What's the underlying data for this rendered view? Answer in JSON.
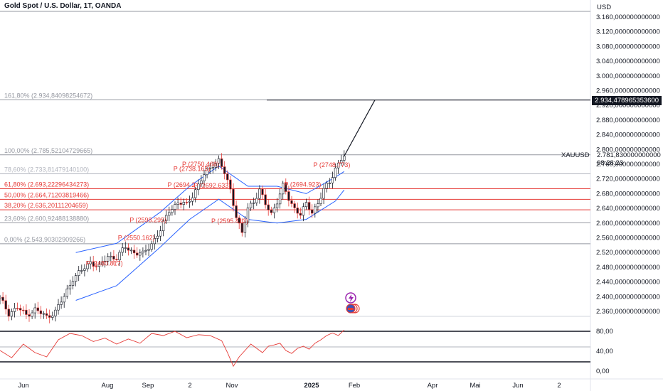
{
  "header": {
    "title": "Gold Spot / U.S. Dollar, 1T, OANDA",
    "currency": "USD"
  },
  "price_tags": {
    "target_price": "2.934,478965353600",
    "symbol": "XAUUSD",
    "last_price": "2.781,830000000000",
    "countdown": "08:28:23"
  },
  "fib_levels": [
    {
      "label": "161,80% (2.934,84098254672)",
      "value": 2934.84,
      "color": "#9598a1"
    },
    {
      "label": "100,00% (2.785,52104729665)",
      "value": 2785.52,
      "color": "#9598a1"
    },
    {
      "label": "78,60% (2.733,81479140100)",
      "value": 2733.81,
      "color": "#b2b5be"
    },
    {
      "label": "61,80% (2.693,22296434273)",
      "value": 2693.22,
      "color": "#e53935"
    },
    {
      "label": "50,00% (2.664,71203819466)",
      "value": 2664.71,
      "color": "#e53935"
    },
    {
      "label": "38,20% (2.636,20111204659)",
      "value": 2636.2,
      "color": "#e53935"
    },
    {
      "label": "23,60% (2.600,92488138880)",
      "value": 2600.92,
      "color": "#9598a1"
    },
    {
      "label": "0,00% (2.543,90302909266)",
      "value": 2543.9,
      "color": "#9598a1"
    }
  ],
  "pivot_labels": [
    {
      "text": "P (2750.468)",
      "x": 60,
      "y": 2750.5
    },
    {
      "text": "P (2738.165)",
      "x": 57,
      "y": 2738.2
    },
    {
      "text": "P (2748.773)",
      "x": 105,
      "y": 2748.8
    },
    {
      "text": "P (2694.2",
      "x": 55,
      "y": 2694.2
    },
    {
      "text": "P (2692.633)",
      "x": 64,
      "y": 2692.6
    },
    {
      "text": "P (2694.923)",
      "x": 95,
      "y": 2694.9
    },
    {
      "text": "P (2598.295)",
      "x": 42,
      "y": 2598.3
    },
    {
      "text": "P (2595.413)",
      "x": 70,
      "y": 2595.4
    },
    {
      "text": "P (2550.162)",
      "x": 38,
      "y": 2550.2
    },
    {
      "text": "P (2480.817)",
      "x": 27,
      "y": 2480.8
    }
  ],
  "axes": {
    "price_ticks": [
      "3.160,000000000000",
      "3.120,000000000000",
      "3.080,000000000000",
      "3.040,000000000000",
      "3.000,000000000000",
      "2.960,000000000000",
      "2.920,000000000000",
      "2.880,000000000000",
      "2.840,000000000000",
      "2.800,000000000000",
      "2.760,000000000000",
      "2.720,000000000000",
      "2.680,000000000000",
      "2.640,000000000000",
      "2.600,000000000000",
      "2.560,000000000000",
      "2.520,000000000000",
      "2.480,000000000000",
      "2.440,000000000000",
      "2.400,000000000000",
      "2.360,000000000000"
    ],
    "rsi_ticks": [
      "80,00",
      "40,00",
      "0,00"
    ],
    "time_ticks": [
      "Jun",
      "Aug",
      "Sep",
      "2",
      "Nov",
      "2025",
      "Feb",
      "Apr",
      "Mai",
      "Jun",
      "2"
    ]
  },
  "chart_data": {
    "type": "candlestick",
    "title": "Gold Spot / U.S. Dollar, 1T, OANDA",
    "y_unit": "USD",
    "ylim": [
      2340,
      3180
    ],
    "x_range_days": [
      0,
      220
    ],
    "x_ticks": [
      {
        "label": "Jun",
        "day": 0
      },
      {
        "label": "Aug",
        "day": 35
      },
      {
        "label": "Sep",
        "day": 48
      },
      {
        "label": "2",
        "day": 62
      },
      {
        "label": "Nov",
        "day": 75
      },
      {
        "label": "2025",
        "day": 101
      },
      {
        "label": "Feb",
        "day": 116
      },
      {
        "label": "Apr",
        "day": 142
      },
      {
        "label": "Mai",
        "day": 157
      },
      {
        "label": "Jun",
        "day": 170
      },
      {
        "label": "2",
        "day": 183
      }
    ],
    "price_path": [
      [
        0,
        2395
      ],
      [
        3,
        2355
      ],
      [
        6,
        2370
      ],
      [
        9,
        2350
      ],
      [
        12,
        2365
      ],
      [
        16,
        2345
      ],
      [
        19,
        2360
      ],
      [
        22,
        2400
      ],
      [
        25,
        2450
      ],
      [
        28,
        2470
      ],
      [
        31,
        2495
      ],
      [
        34,
        2480
      ],
      [
        37,
        2510
      ],
      [
        40,
        2505
      ],
      [
        43,
        2535
      ],
      [
        46,
        2520
      ],
      [
        49,
        2515
      ],
      [
        52,
        2545
      ],
      [
        55,
        2580
      ],
      [
        58,
        2635
      ],
      [
        61,
        2655
      ],
      [
        64,
        2650
      ],
      [
        67,
        2690
      ],
      [
        70,
        2730
      ],
      [
        73,
        2760
      ],
      [
        75,
        2770
      ],
      [
        77,
        2735
      ],
      [
        79,
        2690
      ],
      [
        81,
        2620
      ],
      [
        83,
        2570
      ],
      [
        85,
        2640
      ],
      [
        87,
        2660
      ],
      [
        89,
        2690
      ],
      [
        91,
        2650
      ],
      [
        93,
        2625
      ],
      [
        95,
        2660
      ],
      [
        97,
        2700
      ],
      [
        99,
        2665
      ],
      [
        101,
        2640
      ],
      [
        103,
        2625
      ],
      [
        105,
        2650
      ],
      [
        107,
        2630
      ],
      [
        109,
        2655
      ],
      [
        111,
        2690
      ],
      [
        113,
        2710
      ],
      [
        115,
        2750
      ],
      [
        117,
        2775
      ],
      [
        118,
        2782
      ]
    ],
    "projection": [
      [
        118,
        2782
      ],
      [
        124,
        2934.48
      ]
    ],
    "bb_upper": [
      [
        26,
        2520
      ],
      [
        40,
        2545
      ],
      [
        55,
        2630
      ],
      [
        65,
        2700
      ],
      [
        75,
        2755
      ],
      [
        85,
        2700
      ],
      [
        95,
        2700
      ],
      [
        105,
        2680
      ],
      [
        115,
        2725
      ],
      [
        118,
        2740
      ]
    ],
    "bb_lower": [
      [
        26,
        2390
      ],
      [
        40,
        2430
      ],
      [
        55,
        2535
      ],
      [
        65,
        2610
      ],
      [
        75,
        2665
      ],
      [
        85,
        2610
      ],
      [
        95,
        2600
      ],
      [
        105,
        2610
      ],
      [
        115,
        2660
      ],
      [
        118,
        2690
      ]
    ],
    "rsi": [
      [
        0,
        45
      ],
      [
        4,
        28
      ],
      [
        8,
        60
      ],
      [
        12,
        40
      ],
      [
        16,
        30
      ],
      [
        20,
        70
      ],
      [
        24,
        85
      ],
      [
        28,
        80
      ],
      [
        32,
        66
      ],
      [
        36,
        74
      ],
      [
        40,
        60
      ],
      [
        44,
        72
      ],
      [
        48,
        62
      ],
      [
        52,
        85
      ],
      [
        56,
        80
      ],
      [
        60,
        90
      ],
      [
        64,
        75
      ],
      [
        68,
        82
      ],
      [
        72,
        80
      ],
      [
        76,
        68
      ],
      [
        78,
        40
      ],
      [
        80,
        8
      ],
      [
        82,
        30
      ],
      [
        84,
        45
      ],
      [
        86,
        60
      ],
      [
        88,
        50
      ],
      [
        90,
        40
      ],
      [
        92,
        55
      ],
      [
        94,
        58
      ],
      [
        96,
        62
      ],
      [
        98,
        45
      ],
      [
        100,
        38
      ],
      [
        102,
        50
      ],
      [
        104,
        55
      ],
      [
        106,
        48
      ],
      [
        108,
        62
      ],
      [
        110,
        70
      ],
      [
        112,
        80
      ],
      [
        114,
        86
      ],
      [
        116,
        80
      ],
      [
        118,
        93
      ]
    ],
    "rsi_levels": [
      80,
      60,
      20
    ],
    "rsi_range": [
      0,
      100
    ],
    "last_price": 2781.83,
    "target_price": 2934.48
  }
}
